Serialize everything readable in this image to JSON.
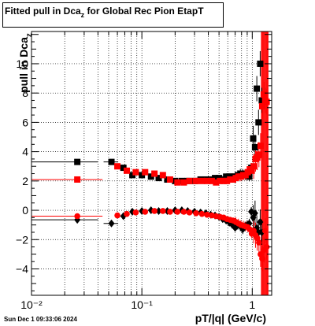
{
  "title": {
    "main": "Fitted pull in Dca",
    "sub": "z",
    "rest": " for Global Rec Pion EtapT"
  },
  "axes": {
    "ylabel_main": "pull in Dca",
    "ylabel_sub": "z",
    "xlabel": "pT/|q| (GeV/c)"
  },
  "footer": "Sun Dec  1 09:33:06 2024",
  "colors": {
    "black_series": "#000000",
    "red_series": "#ff0000",
    "grid": "#000000"
  },
  "chart_data": {
    "type": "scatter",
    "xscale": "log",
    "xlim": [
      0.01,
      1.5
    ],
    "ylim": [
      -5.8,
      12.2
    ],
    "grid": true,
    "xticks": [
      {
        "v": 0.01,
        "label": "10⁻²"
      },
      {
        "v": 0.1,
        "label": "10⁻¹"
      },
      {
        "v": 1,
        "label": "1"
      }
    ],
    "yticks": [
      -4,
      -2,
      0,
      2,
      4,
      6,
      8,
      10
    ],
    "series": [
      {
        "marker": "square",
        "color": "#000000",
        "x": [
          0.026,
          0.053,
          0.068,
          0.082,
          0.1,
          0.121,
          0.142,
          0.17,
          0.2,
          0.23,
          0.26,
          0.3,
          0.34,
          0.38,
          0.42,
          0.46,
          0.5,
          0.54,
          0.58,
          0.62,
          0.66,
          0.7,
          0.74,
          0.78,
          0.82,
          0.86,
          0.9,
          0.94,
          0.98,
          1.02,
          1.06,
          1.1,
          1.14,
          1.18,
          1.22
        ],
        "y": [
          3.3,
          3.3,
          2.9,
          2.4,
          2.4,
          2.3,
          2.2,
          2.1,
          2.0,
          2.0,
          2.0,
          2.0,
          2.1,
          2.1,
          2.1,
          2.2,
          2.2,
          2.1,
          2.3,
          2.3,
          2.3,
          2.3,
          2.4,
          2.5,
          2.5,
          2.4,
          2.4,
          2.3,
          2.9,
          4.9,
          4.3,
          8.3,
          6.0,
          10.0,
          7.5
        ]
      },
      {
        "marker": "diamond",
        "color": "#000000",
        "x": [
          0.026,
          0.053,
          0.068,
          0.082,
          0.1,
          0.121,
          0.142,
          0.17,
          0.2,
          0.23,
          0.26,
          0.3,
          0.34,
          0.38,
          0.42,
          0.46,
          0.5,
          0.54,
          0.58,
          0.62,
          0.66,
          0.7,
          0.74,
          0.78,
          0.82,
          0.86,
          0.9,
          0.94,
          0.98,
          1.02,
          1.06,
          1.1,
          1.14,
          1.18,
          1.22
        ],
        "y": [
          -0.65,
          -0.9,
          -0.4,
          -0.1,
          -0.05,
          0.0,
          -0.05,
          -0.05,
          0.0,
          0.0,
          -0.05,
          -0.1,
          -0.15,
          -0.2,
          -0.3,
          -0.35,
          -0.45,
          -0.6,
          -0.7,
          -0.85,
          -1.0,
          -1.2,
          -1.0,
          -1.1,
          -1.3,
          -1.1,
          -1.0,
          -0.9,
          -0.1,
          -0.5,
          -0.2,
          -1.2,
          -1.5,
          -0.8,
          -1.5
        ]
      },
      {
        "marker": "square",
        "color": "#ff0000",
        "x": [
          0.026,
          0.06,
          0.073,
          0.088,
          0.107,
          0.13,
          0.155,
          0.18,
          0.21,
          0.24,
          0.27,
          0.31,
          0.35,
          0.39,
          0.43,
          0.47,
          0.51,
          0.55,
          0.59,
          0.63,
          0.67,
          0.71,
          0.75,
          0.79,
          0.83,
          0.87,
          0.91,
          0.95,
          0.99,
          1.03,
          1.07,
          1.11,
          1.15,
          1.19,
          1.23,
          1.27,
          1.31,
          1.35
        ],
        "y": [
          2.1,
          3.0,
          2.7,
          2.6,
          2.6,
          2.5,
          2.4,
          2.1,
          1.9,
          1.9,
          2.0,
          2.0,
          2.0,
          2.0,
          2.0,
          1.9,
          2.0,
          2.0,
          2.0,
          2.1,
          2.1,
          2.2,
          2.3,
          2.3,
          2.4,
          2.4,
          2.6,
          2.8,
          2.7,
          3.0,
          3.5,
          3.6,
          3.8,
          4.4,
          7.1,
          7.9,
          7.5,
          7.4
        ]
      },
      {
        "marker": "circle",
        "color": "#ff0000",
        "x": [
          0.026,
          0.06,
          0.073,
          0.088,
          0.107,
          0.13,
          0.155,
          0.18,
          0.21,
          0.24,
          0.27,
          0.31,
          0.35,
          0.39,
          0.43,
          0.47,
          0.51,
          0.55,
          0.59,
          0.63,
          0.67,
          0.71,
          0.75,
          0.79,
          0.83,
          0.87,
          0.91,
          0.95,
          0.99,
          1.03,
          1.07,
          1.11,
          1.15,
          1.19,
          1.23,
          1.27,
          1.31,
          1.35
        ],
        "y": [
          -0.4,
          -0.35,
          -0.25,
          -0.15,
          -0.1,
          -0.05,
          -0.05,
          -0.1,
          -0.1,
          -0.1,
          -0.15,
          -0.2,
          -0.25,
          -0.3,
          -0.35,
          -0.4,
          -0.45,
          -0.5,
          -0.6,
          -0.65,
          -0.7,
          -0.8,
          -0.9,
          -1.0,
          -1.05,
          -1.1,
          -1.15,
          -1.3,
          -1.6,
          -1.4,
          -1.7,
          -1.9,
          -2.2,
          -3.0,
          -3.3,
          -2.7,
          -1.4,
          -2.5
        ]
      }
    ],
    "hbars": [
      {
        "color": "#000000",
        "y": 3.3,
        "x0": 0.01,
        "x1": 0.04
      },
      {
        "color": "#000000",
        "y": -0.65,
        "x0": 0.01,
        "x1": 0.04
      },
      {
        "color": "#ff0000",
        "y": 2.1,
        "x0": 0.01,
        "x1": 0.044
      },
      {
        "color": "#ff0000",
        "y": -0.4,
        "x0": 0.01,
        "x1": 0.044
      },
      {
        "color": "#000000",
        "y": -0.9,
        "x0": 0.045,
        "x1": 0.061
      },
      {
        "color": "#000000",
        "y": 3.3,
        "x0": 0.045,
        "x1": 0.061
      }
    ],
    "vlines": {
      "color": "#ff0000",
      "x": [
        1.21,
        1.23,
        1.25,
        1.27,
        1.29,
        1.31,
        1.33,
        1.35,
        1.37,
        1.39
      ],
      "y0": -5.8,
      "y1": 12.2
    }
  }
}
